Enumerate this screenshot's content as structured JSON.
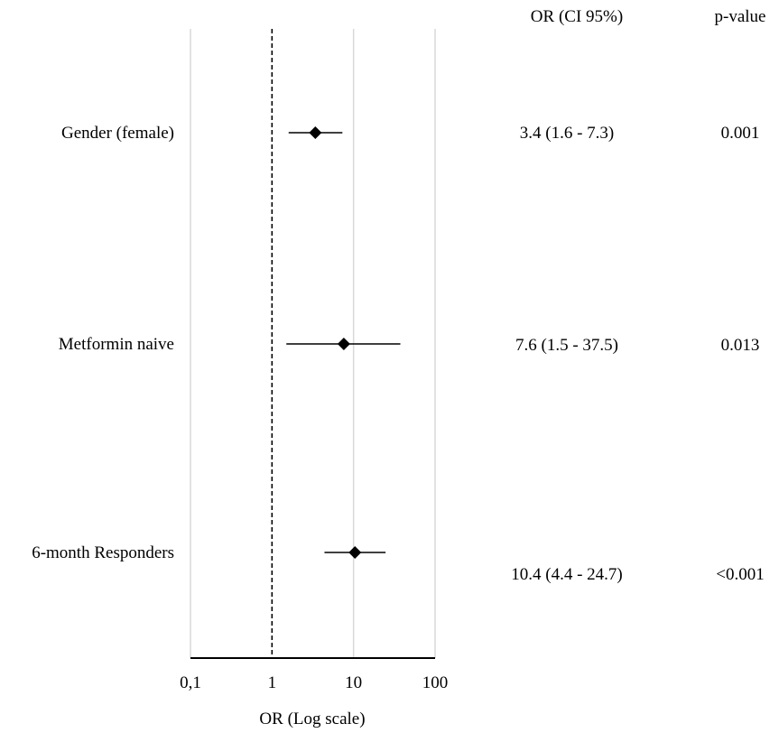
{
  "chart_data": {
    "type": "forest",
    "xlabel": "OR (Log scale)",
    "xscale": "log",
    "xlim": [
      0.1,
      100
    ],
    "xticks": [
      0.1,
      1,
      10,
      100
    ],
    "xtick_labels": [
      "0,1",
      "1",
      "10",
      "100"
    ],
    "reference_line": 1,
    "grid": true,
    "column_headers": {
      "or": "OR (CI 95%)",
      "p": "p-value"
    },
    "rows": [
      {
        "label": "Gender (female)",
        "or": 3.4,
        "ci": [
          1.6,
          7.3
        ],
        "or_text": "3.4 (1.6 - 7.3)",
        "p_text": "0.001"
      },
      {
        "label": "Metformin naive",
        "or": 7.6,
        "ci": [
          1.5,
          37.5
        ],
        "or_text": "7.6 (1.5 - 37.5)",
        "p_text": "0.013"
      },
      {
        "label": "6-month Responders",
        "or": 10.4,
        "ci": [
          4.4,
          24.7
        ],
        "or_text": "10.4 (4.4 - 24.7)",
        "p_text": "<0.001"
      }
    ],
    "colors": {
      "marker": "#000000",
      "grid": "#d9d9d9"
    }
  }
}
